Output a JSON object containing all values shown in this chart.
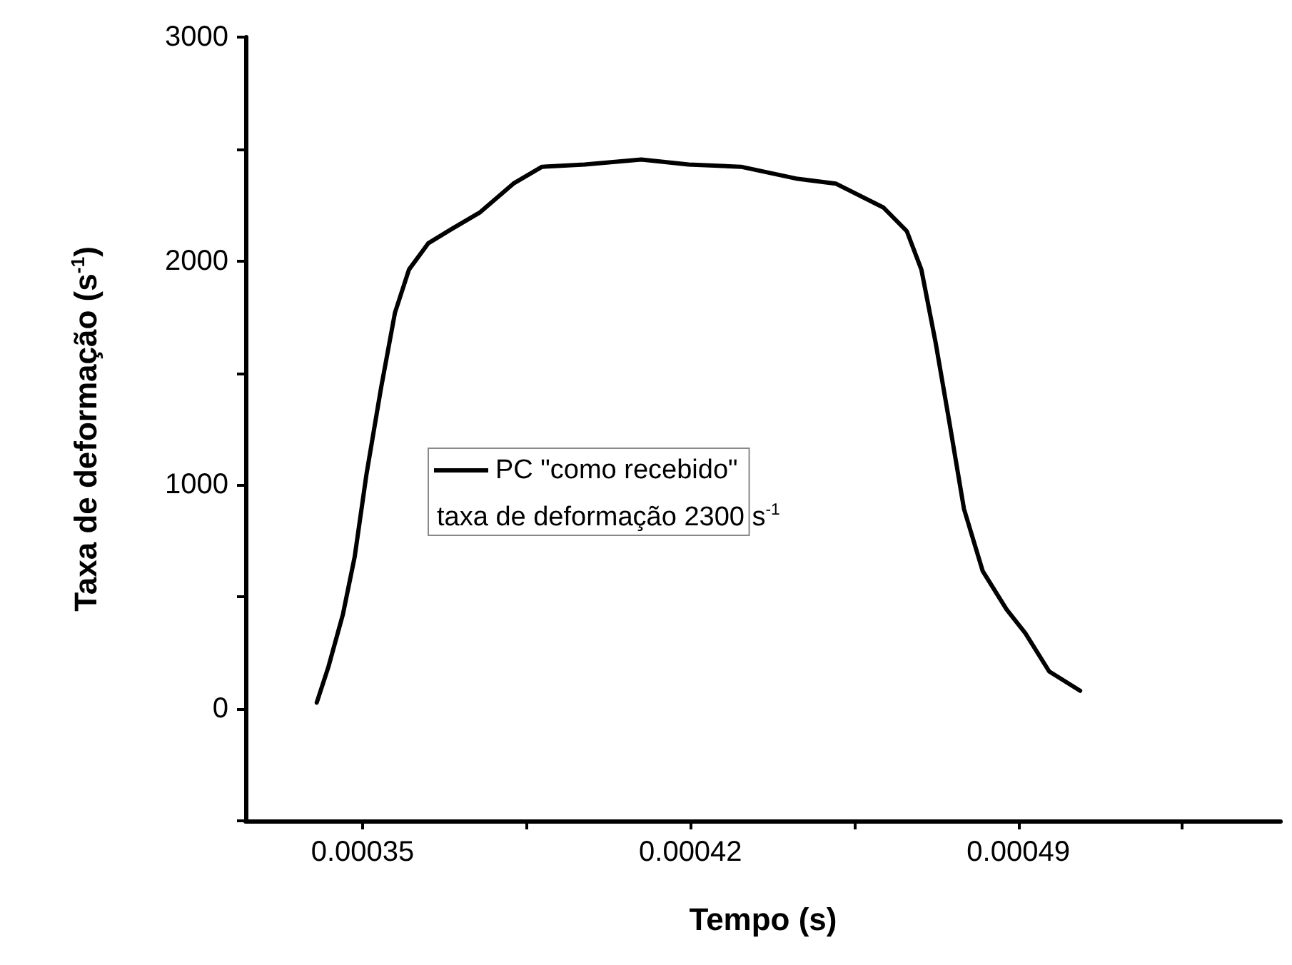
{
  "chart_data": {
    "type": "line",
    "xlabel": "Tempo (s)",
    "ylabel": "Taxa de deformação (s$^{-1}$)",
    "x": [
      0.0003402,
      0.0003427,
      0.0003458,
      0.0003483,
      0.0003508,
      0.0003539,
      0.0003569,
      0.0003599,
      0.000364,
      0.000369,
      0.0003751,
      0.0003822,
      0.0003883,
      0.0003974,
      0.0004095,
      0.0004196,
      0.0004308,
      0.0004429,
      0.000451,
      0.0004612,
      0.0004662,
      0.0004693,
      0.0004723,
      0.0004753,
      0.0004784,
      0.0004824,
      0.0004875,
      0.0004915,
      0.0004966,
      0.0005032
    ],
    "series": [
      {
        "name": "PC \"como recebido\"",
        "color": "#000000",
        "values": [
          28,
          188,
          423,
          679,
          1045,
          1429,
          1769,
          1962,
          2079,
          2143,
          2218,
          2346,
          2421,
          2431,
          2453,
          2431,
          2421,
          2367,
          2346,
          2239,
          2133,
          1962,
          1641,
          1278,
          893,
          615,
          444,
          338,
          167,
          81
        ]
      }
    ],
    "xlim": [
      0.000325,
      0.000546
    ],
    "xticks": [
      0.00035,
      {
        "value": 0.000385,
        "label": null
      },
      0.00042,
      {
        "value": 0.000455,
        "label": null
      },
      0.00049,
      {
        "value": 0.000525,
        "label": null
      }
    ],
    "ylim": [
      -500,
      3000
    ],
    "yticks": [
      {
        "value": -500,
        "label": null
      },
      0,
      {
        "value": 500,
        "label": null
      },
      1000,
      {
        "value": 1500,
        "label": null
      },
      2000,
      {
        "value": 2500,
        "label": null
      },
      3000
    ],
    "grid": false,
    "legend": "center",
    "marker": "none",
    "line_style": "solid",
    "annotations": [
      "taxa de deformação 2300 s$^{-1}$"
    ]
  }
}
